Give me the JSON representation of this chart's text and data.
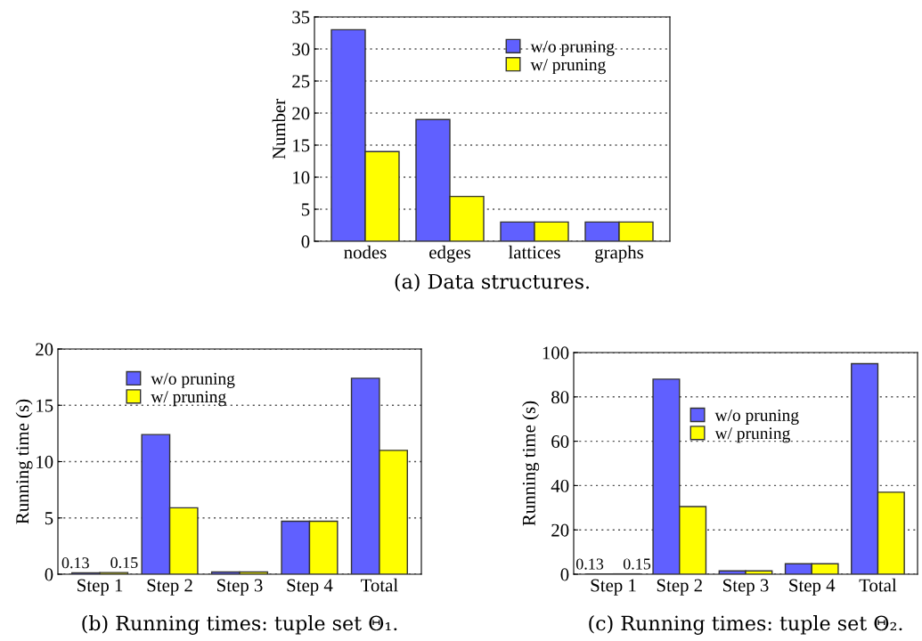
{
  "chart_data": [
    {
      "type": "bar",
      "title": "(a) Data structures.",
      "ylabel": "Number",
      "categories": [
        "nodes",
        "edges",
        "lattices",
        "graphs"
      ],
      "series": [
        {
          "name": "w/o pruning",
          "color": "#6060ff",
          "values": [
            33,
            19,
            3,
            3
          ]
        },
        {
          "name": "w/ pruning",
          "color": "#ffff00",
          "values": [
            14,
            7,
            3,
            3
          ]
        }
      ],
      "ylim": [
        0,
        35
      ],
      "yticks": [
        0,
        5,
        10,
        15,
        20,
        25,
        30,
        35
      ],
      "grid": "y",
      "legend": "top"
    },
    {
      "type": "bar",
      "title": "(b) Running times: tuple set Θ₁.",
      "ylabel": "Running time (s)",
      "categories": [
        "Step 1",
        "Step 2",
        "Step 3",
        "Step 4",
        "Total"
      ],
      "series": [
        {
          "name": "w/o pruning",
          "color": "#6060ff",
          "values": [
            0.13,
            12.4,
            0.2,
            4.7,
            17.4
          ],
          "value_labels": [
            "0.13",
            null,
            null,
            null,
            null
          ]
        },
        {
          "name": "w/ pruning",
          "color": "#ffff00",
          "values": [
            0.15,
            5.9,
            0.2,
            4.7,
            11.0
          ],
          "value_labels": [
            "0.15",
            null,
            null,
            null,
            null
          ]
        }
      ],
      "ylim": [
        0,
        20
      ],
      "yticks": [
        0,
        5,
        10,
        15,
        20
      ],
      "grid": "y",
      "legend": "top left"
    },
    {
      "type": "bar",
      "title": "(c) Running times: tuple set Θ₂.",
      "ylabel": "Running time (s)",
      "categories": [
        "Step 1",
        "Step 2",
        "Step 3",
        "Step 4",
        "Total"
      ],
      "series": [
        {
          "name": "w/o pruning",
          "color": "#6060ff",
          "values": [
            0.13,
            88,
            1.5,
            4.7,
            95
          ],
          "value_labels": [
            "0.13",
            null,
            null,
            null,
            null
          ]
        },
        {
          "name": "w/ pruning",
          "color": "#ffff00",
          "values": [
            0.15,
            30.5,
            1.5,
            4.7,
            37
          ],
          "value_labels": [
            "0.15",
            null,
            null,
            null,
            null
          ]
        }
      ],
      "ylim": [
        0,
        100
      ],
      "yticks": [
        0,
        20,
        40,
        60,
        80,
        100
      ],
      "grid": "y",
      "legend": "center"
    }
  ]
}
